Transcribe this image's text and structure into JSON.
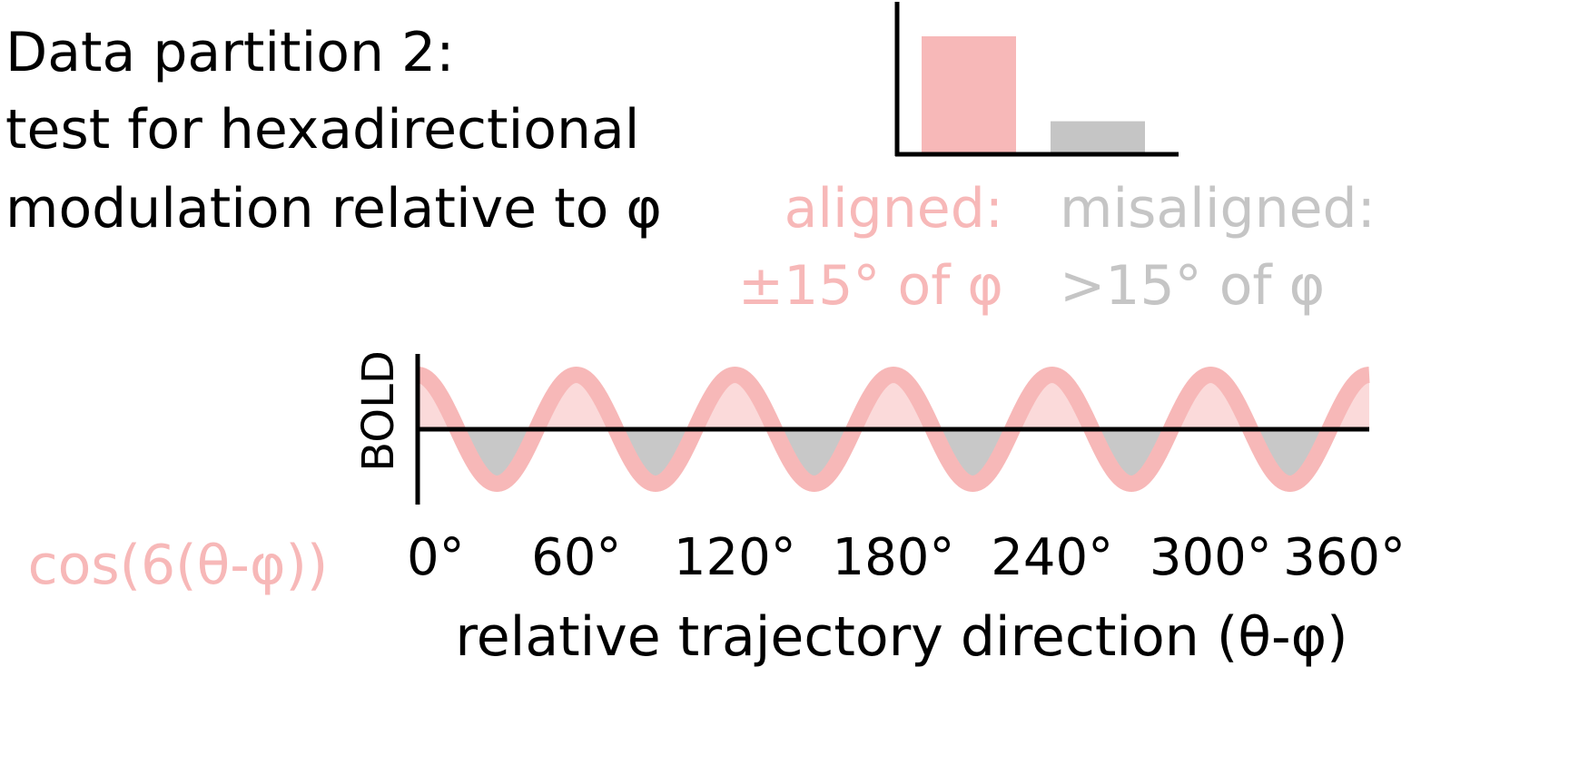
{
  "title": {
    "lines": [
      "Data partition 2:",
      "test for hexadirectional",
      "modulation relative to φ"
    ]
  },
  "bar_chart": {
    "colors": {
      "aligned": "#f7b8b8",
      "misaligned": "#c5c5c5",
      "axis": "#000000"
    },
    "bars": [
      {
        "key": "aligned",
        "line1": "aligned:",
        "line2": "±15° of φ",
        "value": 1.0
      },
      {
        "key": "misaligned",
        "line1": "misaligned:",
        "line2": ">15° of φ",
        "value": 0.28
      }
    ]
  },
  "wave_plot": {
    "function_label": "cos(6(θ-φ))",
    "ylabel": "BOLD",
    "xlabel": "relative trajectory direction (θ-φ)",
    "x_ticks": [
      "0°",
      "60°",
      "120°",
      "180°",
      "240°",
      "300°",
      "360°"
    ],
    "x_range": [
      0,
      360
    ],
    "frequency": 6,
    "colors": {
      "curve": "#f7b8b8",
      "fill_positive": "#fbdada",
      "fill_negative": "#c8c8c8",
      "axis": "#000000"
    }
  }
}
